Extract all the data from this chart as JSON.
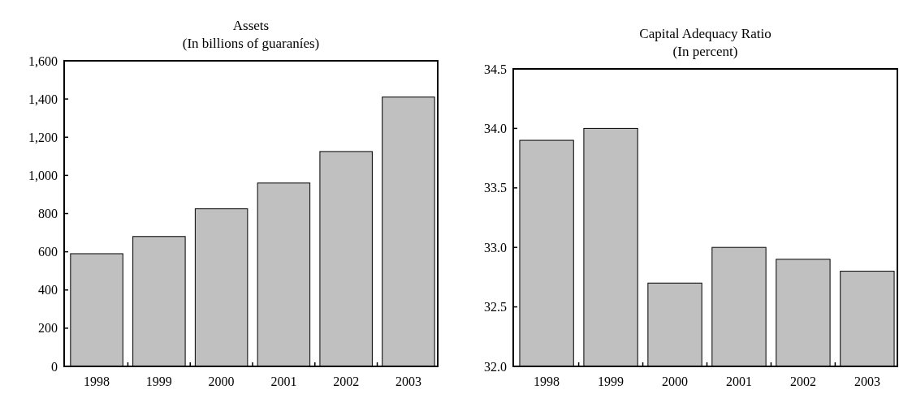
{
  "chart_data": [
    {
      "type": "bar",
      "title": "Assets",
      "subtitle": "(In billions of guaraníes)",
      "categories": [
        "1998",
        "1999",
        "2000",
        "2001",
        "2002",
        "2003"
      ],
      "values": [
        590,
        680,
        825,
        960,
        1125,
        1410
      ],
      "color": "#c0c0c0",
      "ylim": [
        0,
        1600
      ],
      "yticks": [
        {
          "value": 0,
          "label": "0"
        },
        {
          "value": 200,
          "label": "200"
        },
        {
          "value": 400,
          "label": "400"
        },
        {
          "value": 600,
          "label": "600"
        },
        {
          "value": 800,
          "label": "800"
        },
        {
          "value": 1000,
          "label": "1,000"
        },
        {
          "value": 1200,
          "label": "1,200"
        },
        {
          "value": 1400,
          "label": "1,400"
        },
        {
          "value": 1600,
          "label": "1,600"
        }
      ],
      "grid": false
    },
    {
      "type": "bar",
      "title": "Capital Adequacy Ratio",
      "subtitle": "(In percent)",
      "categories": [
        "1998",
        "1999",
        "2000",
        "2001",
        "2002",
        "2003"
      ],
      "values": [
        33.9,
        34.0,
        32.7,
        33.0,
        32.9,
        32.8
      ],
      "color": "#c0c0c0",
      "ylim": [
        32,
        34.5
      ],
      "yticks": [
        {
          "value": 32,
          "label": "32.0"
        },
        {
          "value": 32.5,
          "label": "32.5"
        },
        {
          "value": 33,
          "label": "33.0"
        },
        {
          "value": 33.5,
          "label": "33.5"
        },
        {
          "value": 34,
          "label": "34.0"
        },
        {
          "value": 34.5,
          "label": "34.5"
        }
      ],
      "grid": false
    }
  ]
}
